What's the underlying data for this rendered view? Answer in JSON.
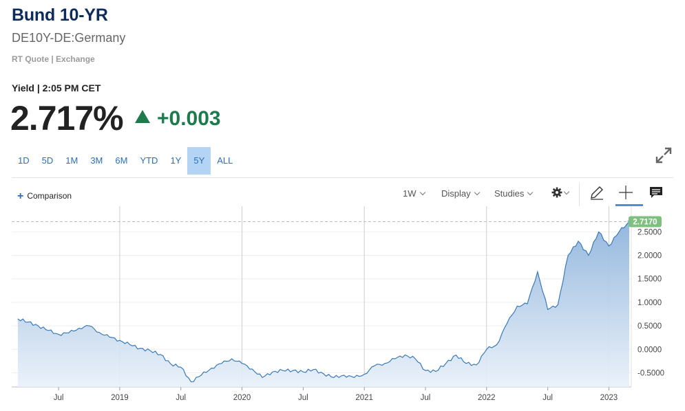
{
  "header": {
    "title": "Bund 10-YR",
    "subtitle": "DE10Y-DE:Germany",
    "rt_quote": "RT Quote | Exchange",
    "yield_label": "Yield | 2:05 PM CET",
    "price": "2.717%",
    "change": "+0.003"
  },
  "ranges": [
    "1D",
    "5D",
    "1M",
    "3M",
    "6M",
    "YTD",
    "1Y",
    "5Y",
    "ALL"
  ],
  "active_range": "5Y",
  "toolbar": {
    "comparison": "Comparison",
    "interval": "1W",
    "display": "Display",
    "studies": "Studies"
  },
  "colors": {
    "title": "#0d2c5a",
    "up": "#1c7a4b",
    "accent": "#2a6ebb",
    "line": "#3a79b8",
    "last_badge": "#7fbf7f"
  },
  "icons": [
    "plus-icon",
    "gear-icon",
    "pencil-icon",
    "crosshair-icon",
    "comment-icon",
    "expand-icon",
    "chevron-down-icon"
  ],
  "chart_data": {
    "type": "area",
    "title": "",
    "xlabel": "",
    "ylabel": "",
    "ylim": [
      -0.8,
      2.9
    ],
    "y_ticks": [
      "2.5000",
      "2.0000",
      "1.5000",
      "1.0000",
      "0.5000",
      "0.0000",
      "-0.5000"
    ],
    "x_ticks": [
      "Jul",
      "2019",
      "Jul",
      "2020",
      "Jul",
      "2021",
      "Jul",
      "2022",
      "Jul",
      "2023"
    ],
    "last_value_label": "2.7170",
    "grid": true,
    "series": [
      {
        "x": [
          "2018-03",
          "2018-04",
          "2018-05",
          "2018-06",
          "2018-07",
          "2018-08",
          "2018-09",
          "2018-10",
          "2018-11",
          "2018-12",
          "2019-01",
          "2019-02",
          "2019-03",
          "2019-04",
          "2019-05",
          "2019-06",
          "2019-07",
          "2019-08",
          "2019-09",
          "2019-10",
          "2019-11",
          "2019-12",
          "2020-01",
          "2020-02",
          "2020-03",
          "2020-04",
          "2020-05",
          "2020-06",
          "2020-07",
          "2020-08",
          "2020-09",
          "2020-10",
          "2020-11",
          "2020-12",
          "2021-01",
          "2021-02",
          "2021-03",
          "2021-04",
          "2021-05",
          "2021-06",
          "2021-07",
          "2021-08",
          "2021-09",
          "2021-10",
          "2021-11",
          "2021-12",
          "2022-01",
          "2022-02",
          "2022-03",
          "2022-04",
          "2022-05",
          "2022-06",
          "2022-07",
          "2022-08",
          "2022-09",
          "2022-10",
          "2022-11",
          "2022-12",
          "2023-01",
          "2023-02",
          "2023-03"
        ],
        "values": [
          0.65,
          0.58,
          0.5,
          0.4,
          0.32,
          0.35,
          0.45,
          0.5,
          0.36,
          0.26,
          0.19,
          0.1,
          0.02,
          -0.03,
          -0.11,
          -0.31,
          -0.38,
          -0.69,
          -0.55,
          -0.4,
          -0.3,
          -0.2,
          -0.3,
          -0.42,
          -0.6,
          -0.48,
          -0.45,
          -0.45,
          -0.48,
          -0.43,
          -0.52,
          -0.6,
          -0.55,
          -0.6,
          -0.53,
          -0.35,
          -0.3,
          -0.2,
          -0.12,
          -0.2,
          -0.45,
          -0.47,
          -0.3,
          -0.12,
          -0.3,
          -0.33,
          0.0,
          0.1,
          0.55,
          0.92,
          0.97,
          1.65,
          0.85,
          0.95,
          2.0,
          2.3,
          2.0,
          2.5,
          2.2,
          2.5,
          2.717
        ]
      }
    ]
  }
}
